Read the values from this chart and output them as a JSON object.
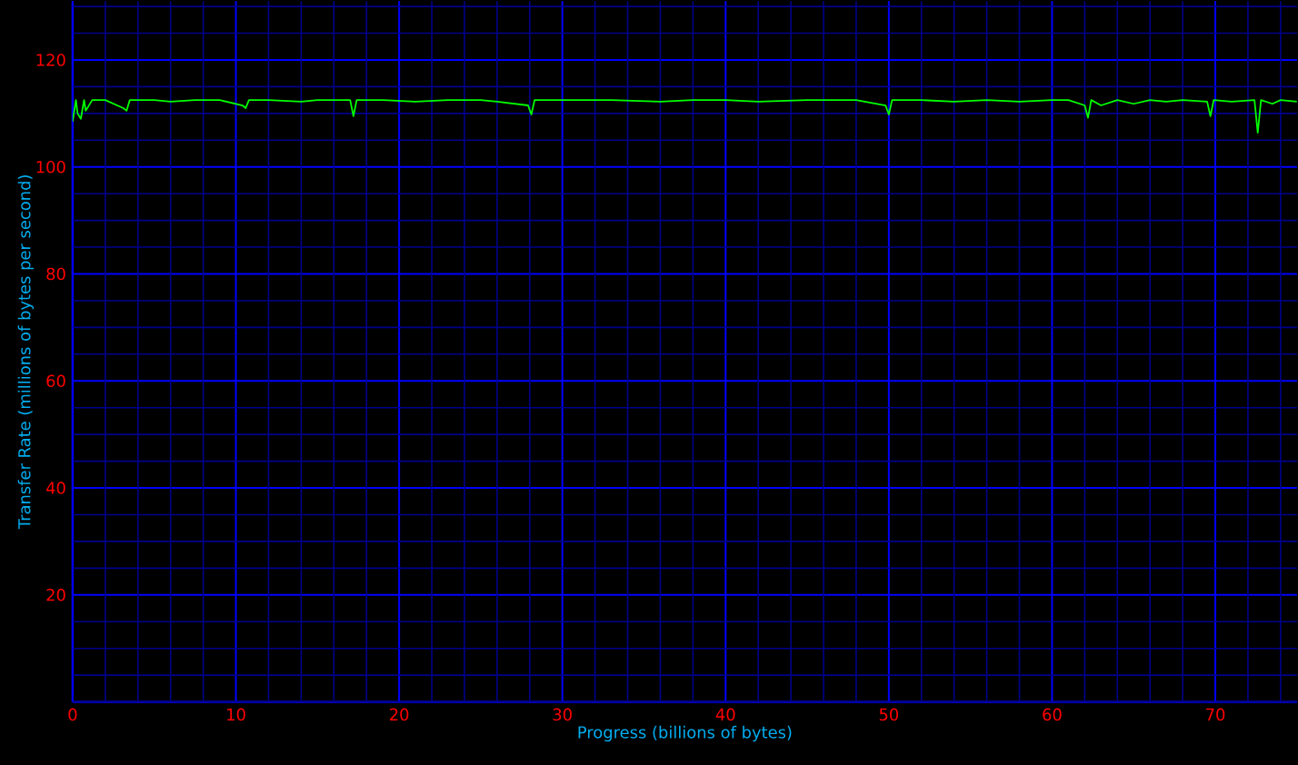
{
  "chart_data": {
    "type": "line",
    "xlabel": "Progress (billions of bytes)",
    "ylabel": "Transfer Rate (millions of bytes per second)",
    "x": [
      0,
      0.2,
      0.3,
      0.5,
      0.7,
      0.8,
      1.2,
      2,
      3.1,
      3.3,
      3.5,
      5,
      6,
      7.5,
      9,
      10.4,
      10.6,
      10.8,
      12,
      14,
      15,
      17,
      17.2,
      17.4,
      19,
      21,
      23,
      25,
      26,
      27.9,
      28.1,
      28.3,
      30,
      33,
      36,
      38,
      40,
      42,
      45,
      48,
      49.8,
      50,
      50.2,
      52,
      54,
      56,
      58,
      60,
      61,
      62,
      62.2,
      62.4,
      63,
      64,
      65,
      66,
      67,
      68,
      69.5,
      69.7,
      69.9,
      71,
      72.4,
      72.6,
      72.8,
      73.5,
      74,
      75
    ],
    "series": [
      {
        "color": "#00ff00",
        "values": [
          108.5,
          112.5,
          110,
          109,
          112.5,
          110.5,
          112.5,
          112.5,
          111,
          110.5,
          112.5,
          112.5,
          112.2,
          112.5,
          112.5,
          111.5,
          111,
          112.5,
          112.5,
          112.2,
          112.5,
          112.5,
          109.5,
          112.5,
          112.5,
          112.2,
          112.5,
          112.5,
          112.2,
          111.5,
          109.8,
          112.5,
          112.5,
          112.5,
          112.2,
          112.5,
          112.5,
          112.2,
          112.5,
          112.5,
          111.5,
          109.8,
          112.5,
          112.5,
          112.2,
          112.5,
          112.2,
          112.5,
          112.5,
          111.5,
          109.2,
          112.5,
          111.5,
          112.5,
          111.8,
          112.5,
          112.2,
          112.5,
          112.2,
          109.5,
          112.5,
          112.2,
          112.5,
          106.4,
          112.5,
          111.8,
          112.5,
          112.2
        ]
      }
    ],
    "xlim": [
      0,
      75
    ],
    "ylim": [
      0,
      131
    ],
    "xticks": [
      0,
      {
        "value": 2,
        "label": null
      },
      {
        "value": 4,
        "label": null
      },
      {
        "value": 6,
        "label": null
      },
      {
        "value": 8,
        "label": null
      },
      10,
      {
        "value": 12,
        "label": null
      },
      {
        "value": 14,
        "label": null
      },
      {
        "value": 16,
        "label": null
      },
      {
        "value": 18,
        "label": null
      },
      20,
      {
        "value": 22,
        "label": null
      },
      {
        "value": 24,
        "label": null
      },
      {
        "value": 26,
        "label": null
      },
      {
        "value": 28,
        "label": null
      },
      30,
      {
        "value": 32,
        "label": null
      },
      {
        "value": 34,
        "label": null
      },
      {
        "value": 36,
        "label": null
      },
      {
        "value": 38,
        "label": null
      },
      40,
      {
        "value": 42,
        "label": null
      },
      {
        "value": 44,
        "label": null
      },
      {
        "value": 46,
        "label": null
      },
      {
        "value": 48,
        "label": null
      },
      50,
      {
        "value": 52,
        "label": null
      },
      {
        "value": 54,
        "label": null
      },
      {
        "value": 56,
        "label": null
      },
      {
        "value": 58,
        "label": null
      },
      60,
      {
        "value": 62,
        "label": null
      },
      {
        "value": 64,
        "label": null
      },
      {
        "value": 66,
        "label": null
      },
      {
        "value": 68,
        "label": null
      },
      70,
      {
        "value": 72,
        "label": null
      },
      {
        "value": 74,
        "label": null
      }
    ],
    "yticks": [
      {
        "value": 0,
        "label": null
      },
      {
        "value": 5,
        "label": null
      },
      {
        "value": 10,
        "label": null
      },
      {
        "value": 15,
        "label": null
      },
      20,
      {
        "value": 25,
        "label": null
      },
      {
        "value": 30,
        "label": null
      },
      {
        "value": 35,
        "label": null
      },
      40,
      {
        "value": 45,
        "label": null
      },
      {
        "value": 50,
        "label": null
      },
      {
        "value": 55,
        "label": null
      },
      60,
      {
        "value": 65,
        "label": null
      },
      {
        "value": 70,
        "label": null
      },
      {
        "value": 75,
        "label": null
      },
      80,
      {
        "value": 85,
        "label": null
      },
      {
        "value": 90,
        "label": null
      },
      {
        "value": 95,
        "label": null
      },
      100,
      {
        "value": 105,
        "label": null
      },
      {
        "value": 110,
        "label": null
      },
      {
        "value": 115,
        "label": null
      },
      120,
      {
        "value": 125,
        "label": null
      },
      {
        "value": 130,
        "label": null
      }
    ],
    "grid": true,
    "marker": "none",
    "line_style": "solid"
  }
}
